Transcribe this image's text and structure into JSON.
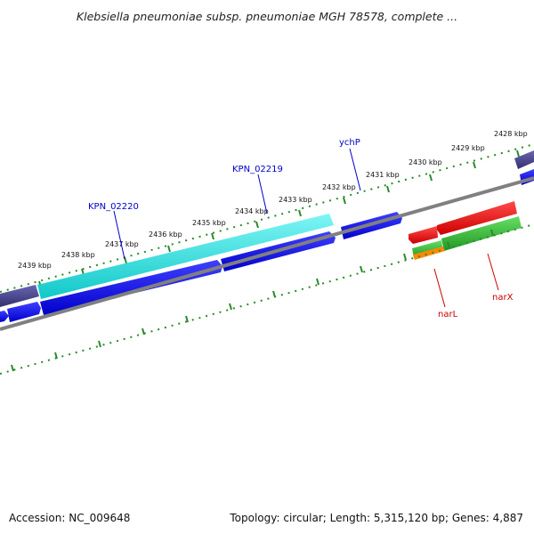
{
  "title": "Klebsiella pneumoniae subsp. pneumoniae MGH 78578, complete ...",
  "footer": {
    "accession": "Accession: NC_009648",
    "stats": "Topology: circular; Length: 5,315,120 bp; Genes: 4,887"
  },
  "scale_labels": [
    "2439 kbp",
    "2438 kbp",
    "2437 kbp",
    "2436 kbp",
    "2435 kbp",
    "2434 kbp",
    "2433 kbp",
    "2432 kbp",
    "2431 kbp",
    "2430 kbp",
    "2429 kbp",
    "2428 kbp"
  ],
  "gene_labels": [
    {
      "name": "KPN_02220",
      "color": "#0000cc"
    },
    {
      "name": "KPN_02219",
      "color": "#0000cc"
    },
    {
      "name": "ychP",
      "color": "#0000cc"
    },
    {
      "name": "narL",
      "color": "#cc0000"
    },
    {
      "name": "narX",
      "color": "#cc0000"
    }
  ],
  "colors": {
    "cds_forward": "#0000ee",
    "cds_cyan": "#19e6e6",
    "cds_slate": "#4a4790",
    "cds_red": "#ee0000",
    "cds_green": "#33bb33",
    "cds_orange": "#ff8800",
    "backbone": "#808080",
    "ticks": "#2a8a2a"
  }
}
